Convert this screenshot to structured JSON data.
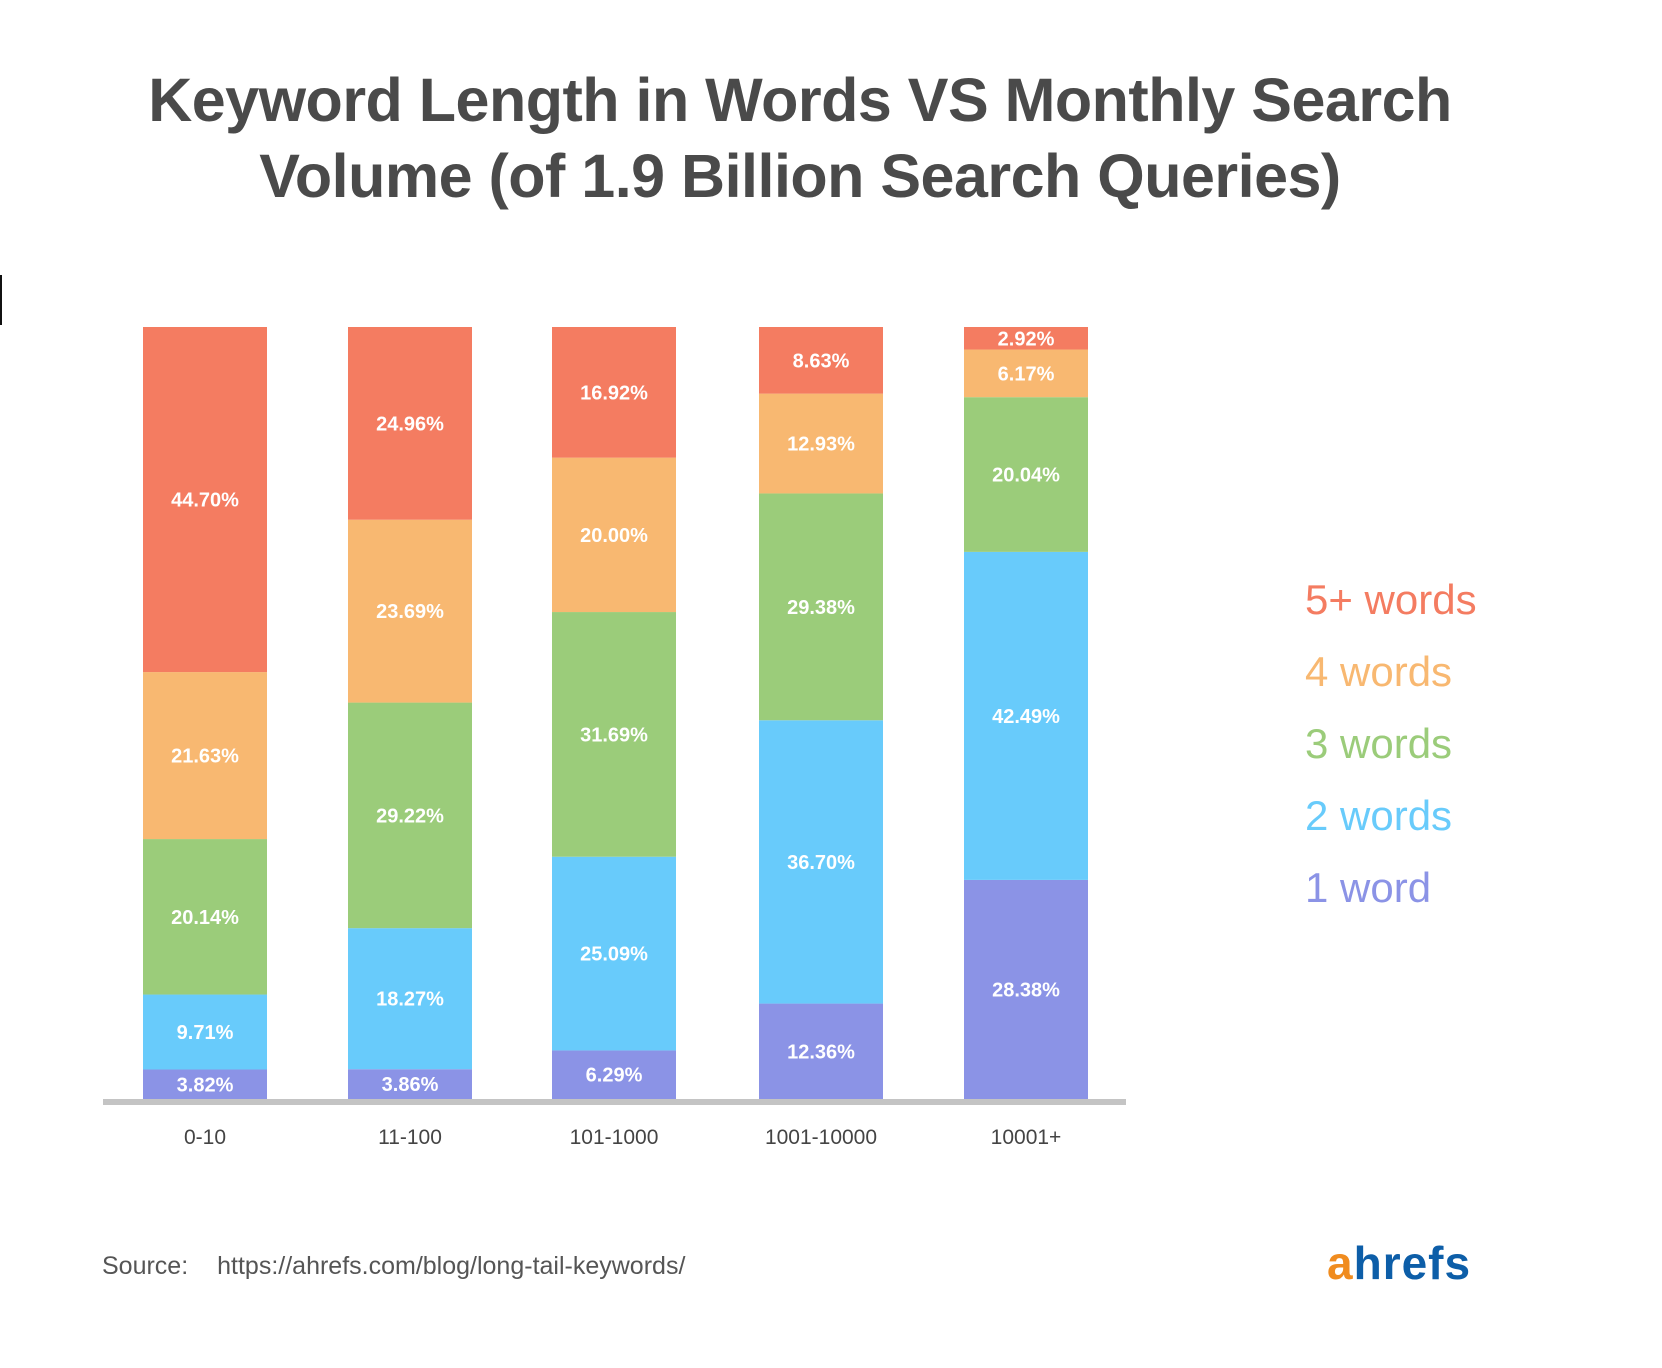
{
  "chart_data": {
    "type": "bar",
    "stacked": true,
    "title": "Keyword Length in Words VS Monthly Search Volume (of 1.9 Billion Search Queries)",
    "title_lines": [
      "Keyword Length in Words VS Monthly Search",
      "Volume (of 1.9 Billion Search Queries)"
    ],
    "categories": [
      "0-10",
      "11-100",
      "101-1000",
      "1001-10000",
      "10001+"
    ],
    "series": [
      {
        "name": "1 word",
        "color": "#8b93e6",
        "values": [
          3.82,
          3.86,
          6.29,
          12.36,
          28.38
        ],
        "labels": [
          "3.82%",
          "3.86%",
          "6.29%",
          "12.36%",
          "28.38%"
        ]
      },
      {
        "name": "2 words",
        "color": "#68cbfb",
        "values": [
          9.71,
          18.27,
          25.09,
          36.7,
          42.49
        ],
        "labels": [
          "9.71%",
          "18.27%",
          "25.09%",
          "36.70%",
          "42.49%"
        ]
      },
      {
        "name": "3 words",
        "color": "#9bcc7a",
        "values": [
          20.14,
          29.22,
          31.69,
          29.38,
          20.04
        ],
        "labels": [
          "20.14%",
          "29.22%",
          "31.69%",
          "29.38%",
          "20.04%"
        ]
      },
      {
        "name": "4 words",
        "color": "#f8b871",
        "values": [
          21.63,
          23.69,
          20.0,
          12.93,
          6.17
        ],
        "labels": [
          "21.63%",
          "23.69%",
          "20.00%",
          "12.93%",
          "6.17%"
        ]
      },
      {
        "name": "5+ words",
        "color": "#f47c61",
        "values": [
          44.7,
          24.96,
          16.92,
          8.63,
          2.92
        ],
        "labels": [
          "44.70%",
          "24.96%",
          "16.92%",
          "8.63%",
          "2.92%"
        ]
      }
    ],
    "legend_order": [
      "5+ words",
      "4 words",
      "3 words",
      "2 words",
      "1 word"
    ],
    "legend_position": "right",
    "ylim": [
      0,
      100
    ],
    "grid": false
  },
  "source": {
    "label": "Source:",
    "url": "https://ahrefs.com/blog/long-tail-keywords/"
  },
  "logo": {
    "text_a": "a",
    "text_rest": "hrefs",
    "color_a": "#f08c1f",
    "color_rest": "#0d5ea8"
  },
  "colors": {
    "title": "#4a4a4a",
    "axis": "#c4c4c4",
    "tick_label": "#444444",
    "bar_label": "#ffffff"
  }
}
